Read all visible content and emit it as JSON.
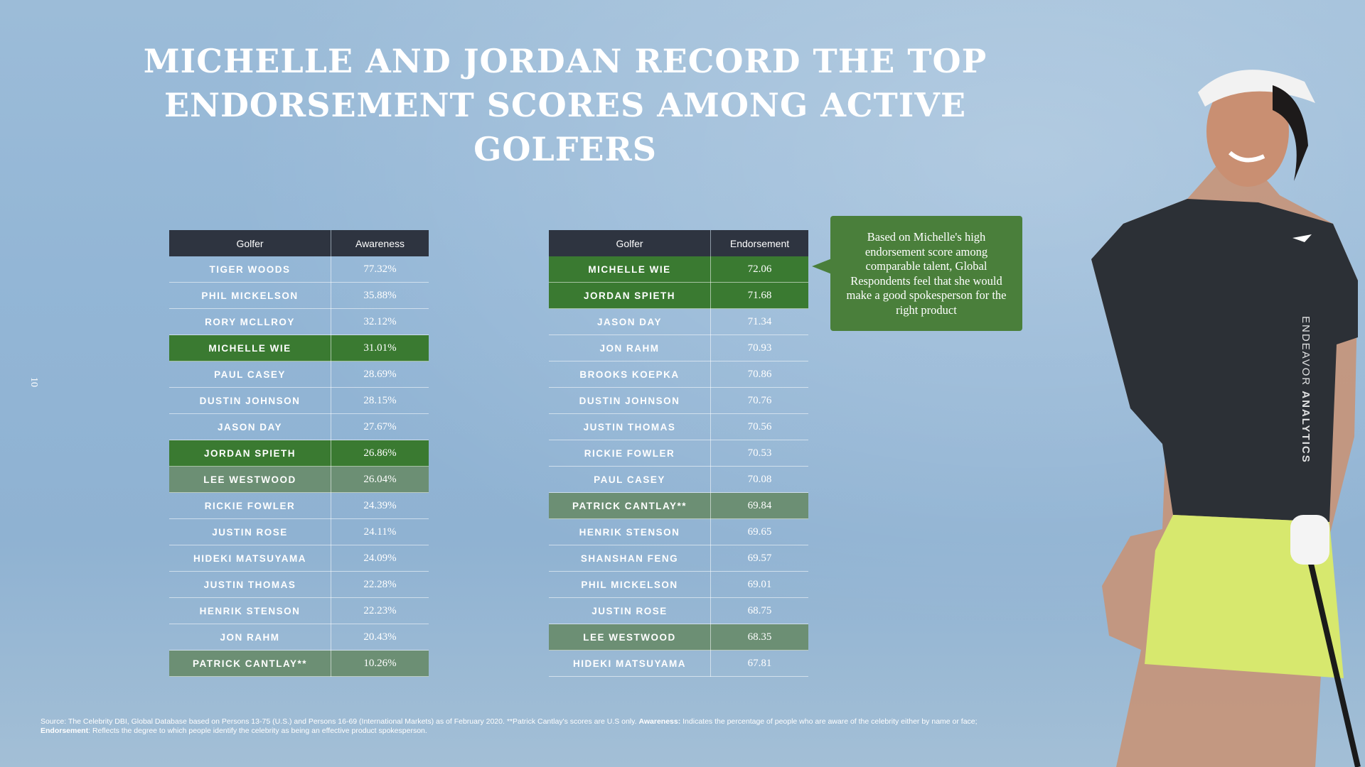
{
  "title_lines": [
    "MICHELLE AND JORDAN RECORD THE TOP",
    "ENDORSEMENT SCORES AMONG ACTIVE GOLFERS"
  ],
  "page_number": "10",
  "colors": {
    "highlight_strong": "#3a7a31",
    "highlight_muted": "#6c8f74",
    "header": "#2e3440",
    "callout": "#4a7f3b"
  },
  "awareness_table": {
    "headers": [
      "Golfer",
      "Awareness"
    ],
    "rows": [
      {
        "name": "TIGER WOODS",
        "value": "77.32%",
        "highlight": ""
      },
      {
        "name": "PHIL MICKELSON",
        "value": "35.88%",
        "highlight": ""
      },
      {
        "name": "RORY MCLLROY",
        "value": "32.12%",
        "highlight": ""
      },
      {
        "name": "MICHELLE WIE",
        "value": "31.01%",
        "highlight": "strong"
      },
      {
        "name": "PAUL CASEY",
        "value": "28.69%",
        "highlight": ""
      },
      {
        "name": "DUSTIN JOHNSON",
        "value": "28.15%",
        "highlight": ""
      },
      {
        "name": "JASON DAY",
        "value": "27.67%",
        "highlight": ""
      },
      {
        "name": "JORDAN SPIETH",
        "value": "26.86%",
        "highlight": "strong"
      },
      {
        "name": "LEE WESTWOOD",
        "value": "26.04%",
        "highlight": "muted"
      },
      {
        "name": "RICKIE FOWLER",
        "value": "24.39%",
        "highlight": ""
      },
      {
        "name": "JUSTIN ROSE",
        "value": "24.11%",
        "highlight": ""
      },
      {
        "name": "HIDEKI MATSUYAMA",
        "value": "24.09%",
        "highlight": ""
      },
      {
        "name": "JUSTIN THOMAS",
        "value": "22.28%",
        "highlight": ""
      },
      {
        "name": "HENRIK STENSON",
        "value": "22.23%",
        "highlight": ""
      },
      {
        "name": "JON RAHM",
        "value": "20.43%",
        "highlight": ""
      },
      {
        "name": "PATRICK CANTLAY**",
        "value": "10.26%",
        "highlight": "muted"
      }
    ]
  },
  "endorsement_table": {
    "headers": [
      "Golfer",
      "Endorsement"
    ],
    "rows": [
      {
        "name": "MICHELLE WIE",
        "value": "72.06",
        "highlight": "strong"
      },
      {
        "name": "JORDAN SPIETH",
        "value": "71.68",
        "highlight": "strong"
      },
      {
        "name": "JASON DAY",
        "value": "71.34",
        "highlight": ""
      },
      {
        "name": "JON RAHM",
        "value": "70.93",
        "highlight": ""
      },
      {
        "name": "BROOKS KOEPKA",
        "value": "70.86",
        "highlight": ""
      },
      {
        "name": "DUSTIN JOHNSON",
        "value": "70.76",
        "highlight": ""
      },
      {
        "name": "JUSTIN THOMAS",
        "value": "70.56",
        "highlight": ""
      },
      {
        "name": "RICKIE FOWLER",
        "value": "70.53",
        "highlight": ""
      },
      {
        "name": "PAUL CASEY",
        "value": "70.08",
        "highlight": ""
      },
      {
        "name": "PATRICK CANTLAY**",
        "value": "69.84",
        "highlight": "muted"
      },
      {
        "name": "HENRIK STENSON",
        "value": "69.65",
        "highlight": ""
      },
      {
        "name": "SHANSHAN FENG",
        "value": "69.57",
        "highlight": ""
      },
      {
        "name": "PHIL MICKELSON",
        "value": "69.01",
        "highlight": ""
      },
      {
        "name": "JUSTIN ROSE",
        "value": "68.75",
        "highlight": ""
      },
      {
        "name": "LEE WESTWOOD",
        "value": "68.35",
        "highlight": "muted"
      },
      {
        "name": "HIDEKI MATSUYAMA",
        "value": "67.81",
        "highlight": ""
      }
    ]
  },
  "callout": "Based on Michelle's high endorsement score among comparable talent, Global Respondents feel that she would make a good spokesperson for the right product",
  "brand": {
    "part1": "ENDEAVOR ",
    "part2": "ANALYTICS"
  },
  "footnote": {
    "source": "Source: The Celebrity DBI, Global Database based on Persons 13-75 (U.S.) and Persons 16-69 (International Markets) as of February 2020. **Patrick Cantlay's scores are U.S only. ",
    "awareness_label": "Awareness:",
    "awareness_text": "  Indicates the percentage of people who are aware of the celebrity either by name or face;",
    "endorsement_label": "Endorsement",
    "endorsement_text": ": Reflects the degree to which people identify the celebrity as being an effective product spokesperson."
  },
  "photo": {
    "subject": "female golfer in white visor, black polo shirt and lime skirt holding a golf club"
  }
}
